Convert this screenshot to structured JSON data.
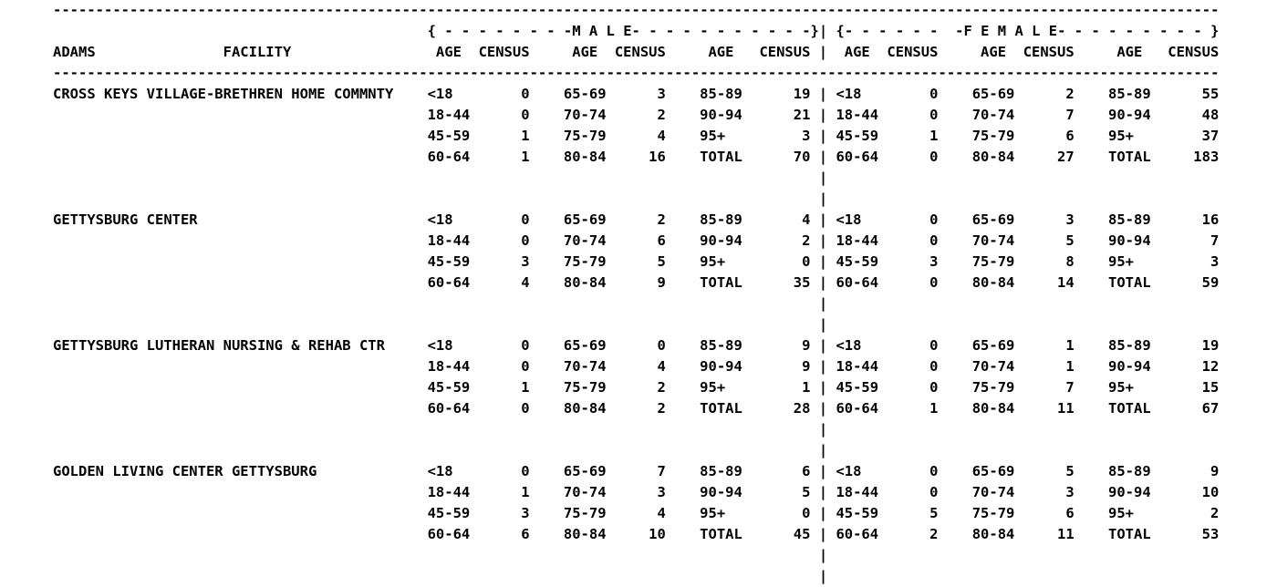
{
  "report": {
    "county": "ADAMS",
    "column_headers": {
      "facility": "FACILITY",
      "age": "AGE",
      "census": "CENSUS"
    },
    "section_headers": {
      "male": "M A L E",
      "female": "F E M A L E"
    },
    "divider_char": "-",
    "separator_char": "|",
    "facilities": [
      {
        "name": "CROSS KEYS VILLAGE-BRETHREN HOME COMMNTY",
        "rows": [
          {
            "m": [
              [
                "<18",
                "0"
              ],
              [
                "65-69",
                "3"
              ],
              [
                "85-89",
                "19"
              ]
            ],
            "f": [
              [
                "<18",
                "0"
              ],
              [
                "65-69",
                "2"
              ],
              [
                "85-89",
                "55"
              ]
            ]
          },
          {
            "m": [
              [
                "18-44",
                "0"
              ],
              [
                "70-74",
                "2"
              ],
              [
                "90-94",
                "21"
              ]
            ],
            "f": [
              [
                "18-44",
                "0"
              ],
              [
                "70-74",
                "7"
              ],
              [
                "90-94",
                "48"
              ]
            ]
          },
          {
            "m": [
              [
                "45-59",
                "1"
              ],
              [
                "75-79",
                "4"
              ],
              [
                "95+",
                "3"
              ]
            ],
            "f": [
              [
                "45-59",
                "1"
              ],
              [
                "75-79",
                "6"
              ],
              [
                "95+",
                "37"
              ]
            ]
          },
          {
            "m": [
              [
                "60-64",
                "1"
              ],
              [
                "80-84",
                "16"
              ],
              [
                "TOTAL",
                "70"
              ]
            ],
            "f": [
              [
                "60-64",
                "0"
              ],
              [
                "80-84",
                "27"
              ],
              [
                "TOTAL",
                "183"
              ]
            ]
          }
        ]
      },
      {
        "name": "GETTYSBURG CENTER",
        "rows": [
          {
            "m": [
              [
                "<18",
                "0"
              ],
              [
                "65-69",
                "2"
              ],
              [
                "85-89",
                "4"
              ]
            ],
            "f": [
              [
                "<18",
                "0"
              ],
              [
                "65-69",
                "3"
              ],
              [
                "85-89",
                "16"
              ]
            ]
          },
          {
            "m": [
              [
                "18-44",
                "0"
              ],
              [
                "70-74",
                "6"
              ],
              [
                "90-94",
                "2"
              ]
            ],
            "f": [
              [
                "18-44",
                "0"
              ],
              [
                "70-74",
                "5"
              ],
              [
                "90-94",
                "7"
              ]
            ]
          },
          {
            "m": [
              [
                "45-59",
                "3"
              ],
              [
                "75-79",
                "5"
              ],
              [
                "95+",
                "0"
              ]
            ],
            "f": [
              [
                "45-59",
                "3"
              ],
              [
                "75-79",
                "8"
              ],
              [
                "95+",
                "3"
              ]
            ]
          },
          {
            "m": [
              [
                "60-64",
                "4"
              ],
              [
                "80-84",
                "9"
              ],
              [
                "TOTAL",
                "35"
              ]
            ],
            "f": [
              [
                "60-64",
                "0"
              ],
              [
                "80-84",
                "14"
              ],
              [
                "TOTAL",
                "59"
              ]
            ]
          }
        ]
      },
      {
        "name": "GETTYSBURG LUTHERAN NURSING & REHAB CTR",
        "rows": [
          {
            "m": [
              [
                "<18",
                "0"
              ],
              [
                "65-69",
                "0"
              ],
              [
                "85-89",
                "9"
              ]
            ],
            "f": [
              [
                "<18",
                "0"
              ],
              [
                "65-69",
                "1"
              ],
              [
                "85-89",
                "19"
              ]
            ]
          },
          {
            "m": [
              [
                "18-44",
                "0"
              ],
              [
                "70-74",
                "4"
              ],
              [
                "90-94",
                "9"
              ]
            ],
            "f": [
              [
                "18-44",
                "0"
              ],
              [
                "70-74",
                "1"
              ],
              [
                "90-94",
                "12"
              ]
            ]
          },
          {
            "m": [
              [
                "45-59",
                "1"
              ],
              [
                "75-79",
                "2"
              ],
              [
                "95+",
                "1"
              ]
            ],
            "f": [
              [
                "45-59",
                "0"
              ],
              [
                "75-79",
                "7"
              ],
              [
                "95+",
                "15"
              ]
            ]
          },
          {
            "m": [
              [
                "60-64",
                "0"
              ],
              [
                "80-84",
                "2"
              ],
              [
                "TOTAL",
                "28"
              ]
            ],
            "f": [
              [
                "60-64",
                "1"
              ],
              [
                "80-84",
                "11"
              ],
              [
                "TOTAL",
                "67"
              ]
            ]
          }
        ]
      },
      {
        "name": "GOLDEN LIVING CENTER GETTYSBURG",
        "rows": [
          {
            "m": [
              [
                "<18",
                "0"
              ],
              [
                "65-69",
                "7"
              ],
              [
                "85-89",
                "6"
              ]
            ],
            "f": [
              [
                "<18",
                "0"
              ],
              [
                "65-69",
                "5"
              ],
              [
                "85-89",
                "9"
              ]
            ]
          },
          {
            "m": [
              [
                "18-44",
                "1"
              ],
              [
                "70-74",
                "3"
              ],
              [
                "90-94",
                "5"
              ]
            ],
            "f": [
              [
                "18-44",
                "0"
              ],
              [
                "70-74",
                "3"
              ],
              [
                "90-94",
                "10"
              ]
            ]
          },
          {
            "m": [
              [
                "45-59",
                "3"
              ],
              [
                "75-79",
                "4"
              ],
              [
                "95+",
                "0"
              ]
            ],
            "f": [
              [
                "45-59",
                "5"
              ],
              [
                "75-79",
                "6"
              ],
              [
                "95+",
                "2"
              ]
            ]
          },
          {
            "m": [
              [
                "60-64",
                "6"
              ],
              [
                "80-84",
                "10"
              ],
              [
                "TOTAL",
                "45"
              ]
            ],
            "f": [
              [
                "60-64",
                "2"
              ],
              [
                "80-84",
                "11"
              ],
              [
                "TOTAL",
                "53"
              ]
            ]
          }
        ]
      }
    ]
  }
}
